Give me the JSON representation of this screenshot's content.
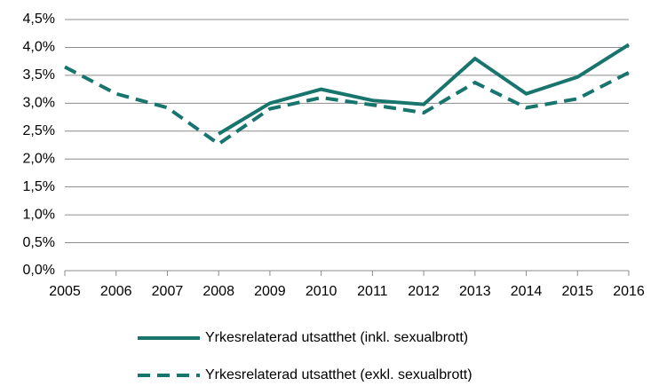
{
  "chart_data": {
    "type": "line",
    "categories": [
      "2005",
      "2006",
      "2007",
      "2008",
      "2009",
      "2010",
      "2011",
      "2012",
      "2013",
      "2014",
      "2015",
      "2016"
    ],
    "series": [
      {
        "name": "Yrkesrelaterad utsatthet (inkl. sexualbrott)",
        "color": "#17756d",
        "dash": false,
        "values": [
          null,
          null,
          null,
          2.45,
          3.0,
          3.25,
          3.05,
          2.98,
          3.8,
          3.17,
          3.47,
          4.05
        ]
      },
      {
        "name": "Yrkesrelaterad utsatthet (exkl. sexualbrott)",
        "color": "#17756d",
        "dash": true,
        "values": [
          3.65,
          3.17,
          2.92,
          2.27,
          2.9,
          3.1,
          2.97,
          2.83,
          3.37,
          2.92,
          3.08,
          3.55
        ]
      }
    ],
    "ylim": [
      0,
      4.5
    ],
    "yticks": [
      {
        "value": 0,
        "label": "0,0%"
      },
      {
        "value": 0.5,
        "label": "0,5%"
      },
      {
        "value": 1,
        "label": "1,0%"
      },
      {
        "value": 1.5,
        "label": "1,5%"
      },
      {
        "value": 2,
        "label": "2,0%"
      },
      {
        "value": 2.5,
        "label": "2,5%"
      },
      {
        "value": 3,
        "label": "3,0%"
      },
      {
        "value": 3.5,
        "label": "3,5%"
      },
      {
        "value": 4,
        "label": "4,0%"
      },
      {
        "value": 4.5,
        "label": "4,5%"
      }
    ],
    "grid": true
  }
}
